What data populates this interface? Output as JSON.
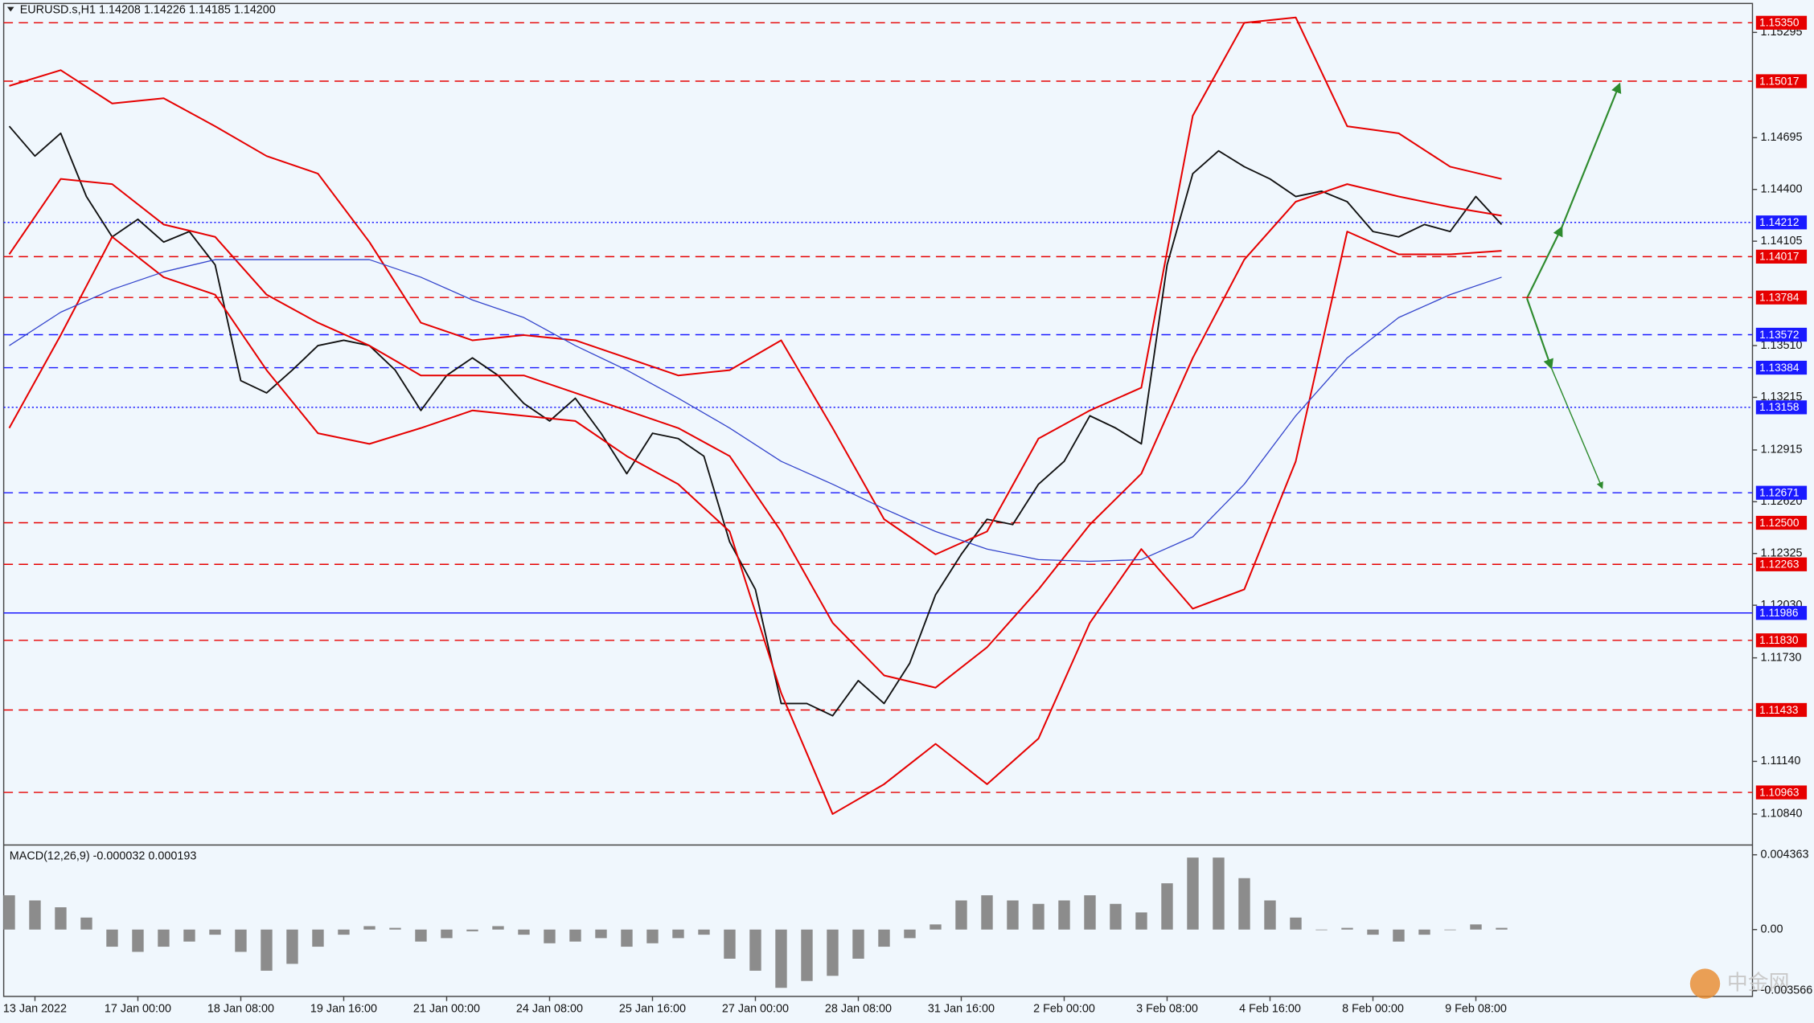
{
  "chart_data": [
    {
      "type": "line",
      "title": "EURUSD.s,H1  1.14208 1.14226 1.14185 1.14200",
      "watermark": "中金网",
      "xlim": [
        -2.43,
        133.5
      ],
      "ylim": [
        1.1067,
        1.1546
      ],
      "xticks": [
        {
          "value": 0,
          "label": "13 Jan 2022"
        },
        {
          "value": 8,
          "label": "17 Jan 00:00"
        },
        {
          "value": 16,
          "label": "18 Jan 08:00"
        },
        {
          "value": 24,
          "label": "19 Jan 16:00"
        },
        {
          "value": 32,
          "label": "21 Jan 00:00"
        },
        {
          "value": 40,
          "label": "24 Jan 08:00"
        },
        {
          "value": 48,
          "label": "25 Jan 16:00"
        },
        {
          "value": 56,
          "label": "27 Jan 00:00"
        },
        {
          "value": 64,
          "label": "28 Jan 08:00"
        },
        {
          "value": 72,
          "label": "31 Jan 16:00"
        },
        {
          "value": 80,
          "label": "2 Feb 00:00"
        },
        {
          "value": 88,
          "label": "3 Feb 08:00"
        },
        {
          "value": 96,
          "label": "4 Feb 16:00"
        },
        {
          "value": 104,
          "label": "8 Feb 00:00"
        },
        {
          "value": 112,
          "label": "9 Feb 08:00"
        }
      ],
      "yticks": [
        1.15295,
        1.14695,
        {
          "value": 1.144,
          "label": "1.14400"
        },
        1.14105,
        {
          "value": 1.1351,
          "label": "1.13510"
        },
        1.13215,
        1.12915,
        {
          "value": 1.1262,
          "label": "1.12620"
        },
        1.12325,
        {
          "value": 1.1203,
          "label": "1.12030"
        },
        {
          "value": 1.1173,
          "label": "1.11730"
        },
        {
          "value": 1.1114,
          "label": "1.11140"
        },
        {
          "value": 1.1084,
          "label": "1.10840"
        }
      ],
      "levels": [
        {
          "value": 1.1535,
          "label": "1.15350",
          "color": "#e60000",
          "style": "dashed"
        },
        {
          "value": 1.15017,
          "label": "1.15017",
          "color": "#e60000",
          "style": "dashed"
        },
        {
          "value": 1.14212,
          "label": "1.14212",
          "color": "#1a1aff",
          "style": "dotted"
        },
        {
          "value": 1.14017,
          "label": "1.14017",
          "color": "#e60000",
          "style": "dashed"
        },
        {
          "value": 1.13784,
          "label": "1.13784",
          "color": "#e60000",
          "style": "dashed"
        },
        {
          "value": 1.13572,
          "label": "1.13572",
          "color": "#1a1aff",
          "style": "dashed"
        },
        {
          "value": 1.13384,
          "label": "1.13384",
          "color": "#1a1aff",
          "style": "dashed"
        },
        {
          "value": 1.13158,
          "label": "1.13158",
          "color": "#1a1aff",
          "style": "dotted"
        },
        {
          "value": 1.12671,
          "label": "1.12671",
          "color": "#1a1aff",
          "style": "dashed"
        },
        {
          "value": 1.125,
          "label": "1.12500",
          "color": "#e60000",
          "style": "dashed"
        },
        {
          "value": 1.12263,
          "label": "1.12263",
          "color": "#e60000",
          "style": "dashed"
        },
        {
          "value": 1.11986,
          "label": "1.11986",
          "color": "#1a1aff",
          "style": "solid"
        },
        {
          "value": 1.1183,
          "label": "1.11830",
          "color": "#e60000",
          "style": "dashed"
        },
        {
          "value": 1.11433,
          "label": "1.11433",
          "color": "#e60000",
          "style": "dashed"
        },
        {
          "value": 1.10963,
          "label": "1.10963",
          "color": "#e60000",
          "style": "dashed"
        }
      ],
      "series": [
        {
          "color": "#111111",
          "width": 1.3,
          "x": [
            -2,
            0,
            2,
            4,
            6,
            8,
            10,
            12,
            14,
            16,
            18,
            20,
            22,
            24,
            26,
            28,
            30,
            32,
            34,
            36,
            38,
            40,
            42,
            44,
            46,
            48,
            50,
            52,
            54,
            56,
            58,
            60,
            62,
            64,
            66,
            68,
            70,
            72,
            74,
            76,
            78,
            80,
            82,
            84,
            86,
            88,
            90,
            92,
            94,
            96,
            98,
            100,
            102,
            104,
            106,
            108,
            110,
            112,
            114
          ],
          "values": [
            1.1476,
            1.1459,
            1.1472,
            1.1436,
            1.1413,
            1.1423,
            1.141,
            1.1416,
            1.1397,
            1.1331,
            1.1324,
            1.1337,
            1.1351,
            1.1354,
            1.1351,
            1.1337,
            1.1314,
            1.1334,
            1.1344,
            1.1334,
            1.1318,
            1.1308,
            1.1321,
            1.1301,
            1.1278,
            1.1301,
            1.1298,
            1.1288,
            1.1239,
            1.1212,
            1.1147,
            1.1147,
            1.114,
            1.116,
            1.1147,
            1.117,
            1.1209,
            1.1232,
            1.1252,
            1.1249,
            1.1272,
            1.1285,
            1.1311,
            1.1304,
            1.1295,
            1.1397,
            1.1449,
            1.1462,
            1.1453,
            1.1446,
            1.1436,
            1.1439,
            1.1433,
            1.1416,
            1.1413,
            1.142,
            1.1416,
            1.1436,
            1.142
          ]
        },
        {
          "color": "#e60000",
          "width": 1.4,
          "x": [
            -2,
            2,
            6,
            10,
            14,
            18,
            22,
            26,
            30,
            34,
            38,
            42,
            46,
            50,
            54,
            58,
            62,
            66,
            70,
            74,
            78,
            82,
            86,
            90,
            94,
            98,
            102,
            106,
            110,
            114
          ],
          "values": [
            1.1499,
            1.1508,
            1.1489,
            1.1492,
            1.1476,
            1.1459,
            1.1449,
            1.141,
            1.1364,
            1.1354,
            1.1357,
            1.1354,
            1.1344,
            1.1334,
            1.1337,
            1.1354,
            1.1304,
            1.1252,
            1.1232,
            1.1245,
            1.1298,
            1.1314,
            1.1327,
            1.1482,
            1.1535,
            1.1538,
            1.1476,
            1.1472,
            1.1453,
            1.1446
          ]
        },
        {
          "color": "#e60000",
          "width": 1.4,
          "x": [
            -2,
            2,
            6,
            10,
            14,
            18,
            22,
            26,
            30,
            34,
            38,
            42,
            46,
            50,
            54,
            58,
            62,
            66,
            70,
            74,
            78,
            82,
            86,
            90,
            94,
            98,
            102,
            106,
            110,
            114
          ],
          "values": [
            1.1403,
            1.1446,
            1.1443,
            1.142,
            1.1413,
            1.138,
            1.1364,
            1.1351,
            1.1334,
            1.1334,
            1.1334,
            1.1324,
            1.1314,
            1.1304,
            1.1288,
            1.1245,
            1.1193,
            1.1163,
            1.1156,
            1.1179,
            1.1212,
            1.1249,
            1.1278,
            1.1344,
            1.14,
            1.1433,
            1.1443,
            1.1436,
            1.143,
            1.1425
          ]
        },
        {
          "color": "#e60000",
          "width": 1.4,
          "x": [
            -2,
            2,
            6,
            10,
            14,
            18,
            22,
            26,
            30,
            34,
            38,
            42,
            46,
            50,
            54,
            58,
            62,
            66,
            70,
            74,
            78,
            82,
            86,
            90,
            94,
            98,
            102,
            106,
            110,
            114
          ],
          "values": [
            1.1304,
            1.1357,
            1.1413,
            1.139,
            1.138,
            1.1337,
            1.1301,
            1.1295,
            1.1304,
            1.1314,
            1.1311,
            1.1308,
            1.1288,
            1.1272,
            1.1245,
            1.1153,
            1.1084,
            1.1101,
            1.1124,
            1.1101,
            1.1127,
            1.1193,
            1.1235,
            1.1201,
            1.1212,
            1.1285,
            1.1416,
            1.1403,
            1.1403,
            1.1405
          ]
        },
        {
          "color": "#3344cc",
          "width": 0.9,
          "x": [
            -2,
            2,
            6,
            10,
            14,
            18,
            22,
            26,
            30,
            34,
            38,
            42,
            46,
            50,
            54,
            58,
            62,
            66,
            70,
            74,
            78,
            82,
            86,
            90,
            94,
            98,
            102,
            106,
            110,
            114
          ],
          "values": [
            1.1351,
            1.137,
            1.1383,
            1.1393,
            1.14,
            1.14,
            1.14,
            1.14,
            1.139,
            1.1377,
            1.1367,
            1.1351,
            1.1337,
            1.1321,
            1.1304,
            1.1285,
            1.1272,
            1.1258,
            1.1245,
            1.1235,
            1.1229,
            1.1228,
            1.1229,
            1.1242,
            1.1272,
            1.1311,
            1.1344,
            1.1367,
            1.138,
            1.139
          ]
        }
      ]
    },
    {
      "type": "bar",
      "title": "MACD(12,26,9) -0.000032 0.000193",
      "xlim": [
        -2.43,
        133.5
      ],
      "ylim": [
        -0.0039,
        0.0048
      ],
      "yticks": [
        0.004363,
        {
          "value": 0,
          "label": "0.00"
        },
        -0.003566
      ],
      "color": "#8c8c8c",
      "x": [
        -2,
        0,
        2,
        4,
        6,
        8,
        10,
        12,
        14,
        16,
        18,
        20,
        22,
        24,
        26,
        28,
        30,
        32,
        34,
        36,
        38,
        40,
        42,
        44,
        46,
        48,
        50,
        52,
        54,
        56,
        58,
        60,
        62,
        64,
        66,
        68,
        70,
        72,
        74,
        76,
        78,
        80,
        82,
        84,
        86,
        88,
        90,
        92,
        94,
        96,
        98,
        100,
        102,
        104,
        106,
        108,
        110,
        112,
        114
      ],
      "values": [
        0.002,
        0.0017,
        0.0013,
        0.0007,
        -0.001,
        -0.0013,
        -0.001,
        -0.0007,
        -0.0003,
        -0.0013,
        -0.0024,
        -0.002,
        -0.001,
        -0.0003,
        0.0002,
        0.0001,
        -0.0007,
        -0.0005,
        -0.0001,
        0.0002,
        -0.0003,
        -0.0008,
        -0.0007,
        -0.0005,
        -0.001,
        -0.0008,
        -0.0005,
        -0.0003,
        -0.0017,
        -0.0024,
        -0.0034,
        -0.003,
        -0.0027,
        -0.0017,
        -0.001,
        -0.0005,
        0.0003,
        0.0017,
        0.002,
        0.0017,
        0.0015,
        0.0017,
        0.002,
        0.0015,
        0.001,
        0.0027,
        0.0042,
        0.0042,
        0.003,
        0.0017,
        0.0007,
        0,
        0.0001,
        -0.0003,
        -0.0007,
        -0.0003,
        0,
        0.0003,
        0.0001
      ]
    }
  ]
}
